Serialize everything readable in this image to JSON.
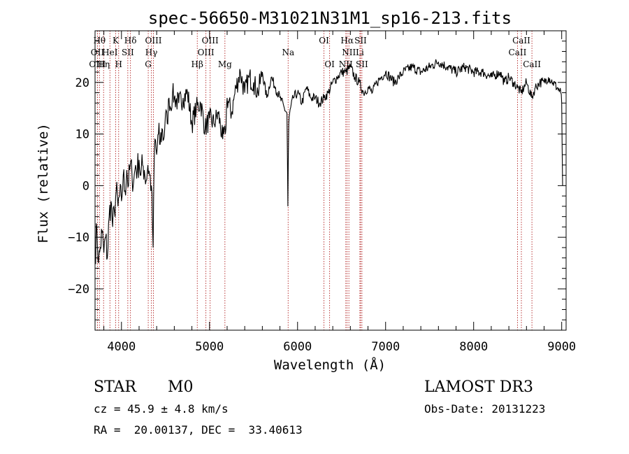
{
  "chart_data": {
    "type": "line",
    "title": "spec-56650-M31021N31M1_sp16-213.fits",
    "xlabel": "Wavelength (Å)",
    "ylabel": "Flux (relative)",
    "xlim": [
      3700,
      9050
    ],
    "ylim": [
      -28,
      30
    ],
    "xticks": [
      4000,
      5000,
      6000,
      7000,
      8000,
      9000
    ],
    "yticks": [
      -20,
      -10,
      0,
      10,
      20
    ],
    "grid": false,
    "line_color": "#000000",
    "marker_color": "#b22222",
    "spectrum": {
      "x": [
        3700,
        3720,
        3740,
        3760,
        3780,
        3800,
        3820,
        3840,
        3860,
        3880,
        3900,
        3920,
        3940,
        3960,
        3980,
        4000,
        4020,
        4040,
        4060,
        4080,
        4100,
        4120,
        4140,
        4160,
        4180,
        4200,
        4220,
        4240,
        4260,
        4280,
        4300,
        4320,
        4340,
        4360,
        4370,
        4380,
        4400,
        4420,
        4440,
        4460,
        4480,
        4500,
        4520,
        4540,
        4560,
        4580,
        4600,
        4650,
        4700,
        4750,
        4800,
        4850,
        4900,
        4950,
        5000,
        5050,
        5100,
        5150,
        5180,
        5200,
        5250,
        5300,
        5350,
        5400,
        5450,
        5500,
        5550,
        5600,
        5650,
        5700,
        5750,
        5800,
        5850,
        5880,
        5890,
        5895,
        5900,
        5910,
        5950,
        6000,
        6050,
        6100,
        6150,
        6200,
        6250,
        6300,
        6350,
        6400,
        6450,
        6500,
        6550,
        6600,
        6650,
        6700,
        6750,
        6800,
        6850,
        6900,
        6950,
        7000,
        7050,
        7100,
        7150,
        7200,
        7300,
        7400,
        7500,
        7600,
        7700,
        7800,
        7900,
        8000,
        8100,
        8200,
        8300,
        8350,
        8400,
        8450,
        8500,
        8540,
        8600,
        8660,
        8700,
        8750,
        8800,
        8850,
        8900,
        8950,
        8990,
        9000,
        9010
      ],
      "y": [
        -14,
        -8,
        -15,
        -12,
        -9,
        -13,
        -10,
        -14,
        -6,
        -3,
        -8,
        -5,
        -1,
        -4,
        -2,
        -3,
        2,
        -1,
        3,
        0,
        4,
        2,
        1,
        4,
        3,
        5,
        2,
        4,
        3,
        1,
        4,
        2,
        0,
        -12,
        3,
        9,
        6,
        10,
        8,
        11,
        9,
        14,
        12,
        17,
        15,
        18,
        17,
        16,
        17,
        18,
        12,
        15,
        16,
        11,
        13,
        12,
        14,
        9,
        10,
        17,
        14,
        19,
        22,
        18,
        21,
        20,
        18,
        22,
        17,
        21,
        19,
        17,
        15,
        14,
        -4,
        5,
        12,
        14,
        17,
        18,
        16,
        19,
        17,
        17,
        16,
        17,
        18,
        20,
        21,
        22,
        22,
        23,
        21,
        20,
        18,
        19,
        18,
        20,
        21,
        22,
        21,
        20,
        21,
        22,
        23,
        22,
        23,
        24,
        23,
        22,
        23,
        22,
        22,
        21,
        22,
        20,
        21,
        20,
        19,
        18,
        20,
        17,
        19,
        20,
        20,
        21,
        20,
        19,
        18,
        16,
        0
      ]
    },
    "line_markers": [
      {
        "x": 3750,
        "label": "Hθ",
        "row": 0
      },
      {
        "x": 3727,
        "label": "OII",
        "row": 1
      },
      {
        "x": 3727,
        "label": "OIII",
        "row": 2
      },
      {
        "x": 3797,
        "label": "Hη",
        "row": 2
      },
      {
        "x": 3869,
        "label": "HeI",
        "row": 1
      },
      {
        "x": 3934,
        "label": "K",
        "row": 0
      },
      {
        "x": 3968,
        "label": "H",
        "row": 2
      },
      {
        "x": 4072,
        "label": "SII",
        "row": 1
      },
      {
        "x": 4102,
        "label": "Hδ",
        "row": 0
      },
      {
        "x": 4304,
        "label": "G",
        "row": 2
      },
      {
        "x": 4340,
        "label": "Hγ",
        "row": 1
      },
      {
        "x": 4363,
        "label": "OIII",
        "row": 0
      },
      {
        "x": 4861,
        "label": "Hβ",
        "row": 2
      },
      {
        "x": 4959,
        "label": "OIII",
        "row": 1
      },
      {
        "x": 5007,
        "label": "OIII",
        "row": 0
      },
      {
        "x": 5175,
        "label": "Mg",
        "row": 2
      },
      {
        "x": 5893,
        "label": "Na",
        "row": 1
      },
      {
        "x": 6300,
        "label": "OI",
        "row": 0
      },
      {
        "x": 6364,
        "label": "OI",
        "row": 2
      },
      {
        "x": 6548,
        "label": "NII",
        "row": 2
      },
      {
        "x": 6563,
        "label": "Hα",
        "row": 0
      },
      {
        "x": 6583,
        "label": "NII",
        "row": 1
      },
      {
        "x": 6708,
        "label": "Li",
        "row": 1
      },
      {
        "x": 6716,
        "label": "SII",
        "row": 0
      },
      {
        "x": 6731,
        "label": "SII",
        "row": 2
      },
      {
        "x": 8498,
        "label": "CaII",
        "row": 1
      },
      {
        "x": 8542,
        "label": "CaII",
        "row": 0
      },
      {
        "x": 8662,
        "label": "CaII",
        "row": 2
      }
    ]
  },
  "info": {
    "class_label": "STAR",
    "subclass": "M0",
    "survey": "LAMOST DR3",
    "redshift_line": "cz = 45.9 ± 4.8 km/s",
    "obs_date_line": "Obs-Date: 20131223",
    "coords_line": "RA =  20.00137, DEC =  33.40613"
  }
}
